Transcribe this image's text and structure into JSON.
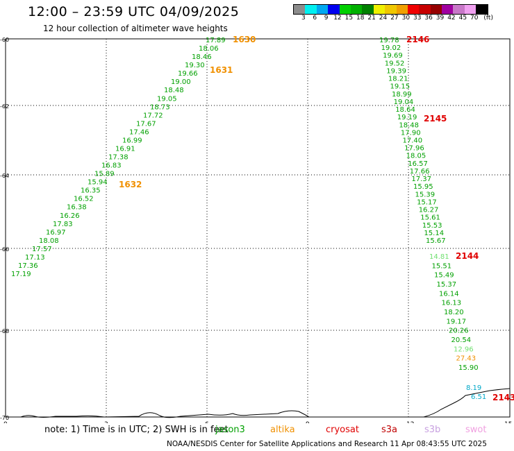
{
  "header": {
    "title": "12:00 – 23:59 UTC 04/09/2025",
    "subtitle": "12 hour collection of altimeter wave heights"
  },
  "colorbar": {
    "colors": [
      "#8c8c8c",
      "#00f0f0",
      "#00a8f0",
      "#0000f0",
      "#00d000",
      "#00b000",
      "#008000",
      "#f0f000",
      "#f0c800",
      "#f0a000",
      "#f00000",
      "#c80000",
      "#960000",
      "#a000a0",
      "#c878c8",
      "#f0a0f0",
      "#000000"
    ],
    "labels": [
      "3",
      "6",
      "9",
      "12",
      "15",
      "18",
      "21",
      "24",
      "27",
      "30",
      "33",
      "36",
      "39",
      "42",
      "45",
      "70"
    ],
    "unit": "(ft)"
  },
  "map": {
    "x_ticks": [
      "0",
      "3",
      "6",
      "9",
      "12",
      "15"
    ],
    "y_ticks": [
      "-60",
      "-62",
      "-64",
      "-66",
      "-68",
      "-70"
    ]
  },
  "passes": [
    {
      "label": "1630",
      "label_color": "#f09000",
      "values": []
    },
    {
      "label": "1631",
      "label_color": "#f09000",
      "values": []
    },
    {
      "label": "1632",
      "label_color": "#f09000",
      "values": []
    },
    {
      "label": "2146",
      "label_color": "#e00000",
      "values": []
    },
    {
      "label": "2145",
      "label_color": "#e00000",
      "values": []
    },
    {
      "label": "2144",
      "label_color": "#e00000",
      "values": []
    },
    {
      "label": "2143",
      "label_color": "#e00000",
      "values": []
    }
  ],
  "track_a": {
    "color": "#00a000",
    "values": [
      "17.89",
      "18.06",
      "18.46",
      "19.30",
      "19.66",
      "19.00",
      "18.48",
      "19.05",
      "18.73",
      "17.72",
      "17.67",
      "17.46",
      "16.99",
      "16.91",
      "17.38",
      "16.83",
      "15.89",
      "15.94",
      "16.35",
      "16.52",
      "16.38",
      "16.26",
      "17.83",
      "16.97",
      "18.08",
      "17.57",
      "17.13",
      "17.36",
      "17.19"
    ]
  },
  "track_b": {
    "color": "#00a000",
    "values": [
      "19.78",
      "19.02",
      "19.69",
      "19.52",
      "19.39",
      "18.21",
      "19.15",
      "18.99",
      "19.04",
      "18.64",
      "19.19",
      "18.48",
      "17.90",
      "17.40",
      "17.96",
      "18.05",
      "16.57",
      "17.66",
      "17.37",
      "15.95",
      "15.39",
      "15.17",
      "16.27",
      "15.61",
      "15.53",
      "15.14",
      "15.67"
    ]
  },
  "track_c": {
    "values": [
      {
        "v": "14.81",
        "color": "#70e070"
      },
      {
        "v": "15.51",
        "color": "#00a000"
      },
      {
        "v": "15.49",
        "color": "#00a000"
      },
      {
        "v": "15.37",
        "color": "#00a000"
      },
      {
        "v": "16.14",
        "color": "#00a000"
      },
      {
        "v": "16.13",
        "color": "#00a000"
      },
      {
        "v": "18.20",
        "color": "#00a000"
      },
      {
        "v": "19.17",
        "color": "#00a000"
      },
      {
        "v": "20.26",
        "color": "#00a000"
      },
      {
        "v": "20.54",
        "color": "#00a000"
      },
      {
        "v": "12.96",
        "color": "#70e070"
      },
      {
        "v": "27.43",
        "color": "#f09000"
      },
      {
        "v": "15.90",
        "color": "#00a000"
      }
    ]
  },
  "track_d": {
    "values": [
      {
        "v": "8.19",
        "color": "#00a8c8"
      },
      {
        "v": "6.51",
        "color": "#00a8c8"
      }
    ]
  },
  "note": "note: 1) Time is in UTC; 2) SWH is in feet",
  "legend": [
    {
      "name": "jason3",
      "color": "#00a000"
    },
    {
      "name": "altika",
      "color": "#f09000"
    },
    {
      "name": "cryosat",
      "color": "#e00000"
    },
    {
      "name": "s3a",
      "color": "#c00000"
    },
    {
      "name": "s3b",
      "color": "#c8a0e0"
    },
    {
      "name": "swot",
      "color": "#f0a0e0"
    }
  ],
  "footer": "NOAA/NESDIS Center for Satellite Applications and Research    11 Apr 08:43:55 UTC 2025"
}
